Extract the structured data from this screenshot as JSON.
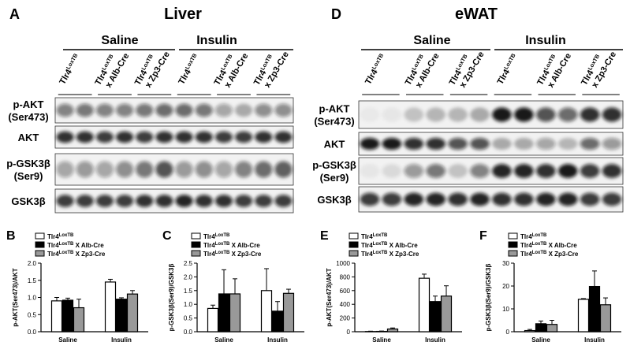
{
  "blots": [
    {
      "letter": "A",
      "title": "Liver",
      "groups": [
        "Saline",
        "Insulin"
      ],
      "lanes": [
        {
          "name": "Tlr4",
          "sup": "LoxTB"
        },
        {
          "name": "Tlr4",
          "sup": "LoxTB",
          "cross": "x Alb-Cre"
        },
        {
          "name": "Tlr4",
          "sup": "LoxTB",
          "cross": "x Zp3-Cre"
        },
        {
          "name": "Tlr4",
          "sup": "LoxTB"
        },
        {
          "name": "Tlr4",
          "sup": "LoxTB",
          "cross": "x Alb-Cre"
        },
        {
          "name": "Tlr4",
          "sup": "LoxTB",
          "cross": "x Zp3-Cre"
        }
      ],
      "rows": [
        [
          "p-AKT",
          "(Ser473)"
        ],
        [
          "AKT"
        ],
        [
          "p-GSK3β",
          "(Ser9)"
        ],
        [
          "GSK3β"
        ]
      ]
    },
    {
      "letter": "D",
      "title": "eWAT",
      "groups": [
        "Saline",
        "Insulin"
      ],
      "lanes": [
        {
          "name": "Tlr4",
          "sup": "LoxTB"
        },
        {
          "name": "Tlr4",
          "sup": "LoxTB",
          "cross": "x Alb-Cre"
        },
        {
          "name": "Tlr4",
          "sup": "LoxTB",
          "cross": "x Zp3-Cre"
        },
        {
          "name": "Tlr4",
          "sup": "LoxTB"
        },
        {
          "name": "Tlr4",
          "sup": "LoxTB",
          "cross": "x Alb-Cre"
        },
        {
          "name": "Tlr4",
          "sup": "LoxTB",
          "cross": "x Zp3-Cre"
        }
      ],
      "rows": [
        [
          "p-AKT",
          "(Ser473)"
        ],
        [
          "AKT"
        ],
        [
          "p-GSK3β",
          "(Ser9)"
        ],
        [
          "GSK3β"
        ]
      ]
    }
  ],
  "chart_data": [
    {
      "type": "bar",
      "letter": "B",
      "ylabel": "p-AKT(Ser473)/AKT",
      "categories": [
        "Saline",
        "Insulin"
      ],
      "ylim": [
        0,
        2
      ],
      "yticks": [
        {
          "value": 0,
          "label": "0.0"
        },
        0.5,
        {
          "value": 1,
          "label": "1.0"
        },
        1.5,
        {
          "value": 2,
          "label": "2.0"
        }
      ],
      "series": [
        {
          "name": "Tlr4LoxTB",
          "color": "#ffffff",
          "values": [
            0.9,
            1.45
          ],
          "errors": [
            0.1,
            0.08
          ]
        },
        {
          "name": "Tlr4LoxTB X Alb-Cre",
          "color": "#000000",
          "values": [
            0.92,
            0.95
          ],
          "errors": [
            0.06,
            0.04
          ]
        },
        {
          "name": "Tlr4LoxTB X Zp3-Cre",
          "color": "#999999",
          "values": [
            0.7,
            1.1
          ],
          "errors": [
            0.25,
            0.1
          ]
        }
      ]
    },
    {
      "type": "bar",
      "letter": "C",
      "ylabel": "p-GSK3β(Ser9)/GSK3β",
      "categories": [
        "Saline",
        "Insulin"
      ],
      "ylim": [
        0,
        2.5
      ],
      "yticks": [
        {
          "value": 0,
          "label": "0.0"
        },
        0.5,
        {
          "value": 1,
          "label": "1.0"
        },
        1.5,
        {
          "value": 2,
          "label": "2.0"
        },
        2.5
      ],
      "series": [
        {
          "name": "Tlr4LoxTB",
          "color": "#ffffff",
          "values": [
            0.85,
            1.5
          ],
          "errors": [
            0.12,
            0.8
          ]
        },
        {
          "name": "Tlr4LoxTB X Alb-Cre",
          "color": "#000000",
          "values": [
            1.38,
            0.75
          ],
          "errors": [
            0.88,
            0.35
          ]
        },
        {
          "name": "Tlr4LoxTB X Zp3-Cre",
          "color": "#999999",
          "values": [
            1.38,
            1.4
          ],
          "errors": [
            0.55,
            0.15
          ]
        }
      ]
    },
    {
      "type": "bar",
      "letter": "E",
      "ylabel": "p-AKT(Ser473)/AKT",
      "categories": [
        "Saline",
        "Insulin"
      ],
      "ylim": [
        0,
        1000
      ],
      "yticks": [
        0,
        200,
        400,
        600,
        800,
        1000
      ],
      "series": [
        {
          "name": "Tlr4LoxTB",
          "color": "#ffffff",
          "values": [
            3,
            780
          ],
          "errors": [
            5,
            60
          ]
        },
        {
          "name": "Tlr4LoxTB X Alb-Cre",
          "color": "#000000",
          "values": [
            5,
            440
          ],
          "errors": [
            5,
            80
          ]
        },
        {
          "name": "Tlr4LoxTB X Zp3-Cre",
          "color": "#999999",
          "values": [
            40,
            520
          ],
          "errors": [
            15,
            150
          ]
        }
      ]
    },
    {
      "type": "bar",
      "letter": "F",
      "ylabel": "p-GSK3β(Ser9)/GSK3β",
      "categories": [
        "Saline",
        "Insulin"
      ],
      "ylim": [
        0,
        30
      ],
      "yticks": [
        0,
        10,
        20,
        30
      ],
      "series": [
        {
          "name": "Tlr4LoxTB",
          "color": "#ffffff",
          "values": [
            0.5,
            14.2
          ],
          "errors": [
            0.5,
            0.3
          ]
        },
        {
          "name": "Tlr4LoxTB X Alb-Cre",
          "color": "#000000",
          "values": [
            3.5,
            19.8
          ],
          "errors": [
            1.2,
            6.8
          ]
        },
        {
          "name": "Tlr4LoxTB X Zp3-Cre",
          "color": "#999999",
          "values": [
            3.2,
            11.8
          ],
          "errors": [
            1.8,
            3
          ]
        }
      ]
    }
  ]
}
